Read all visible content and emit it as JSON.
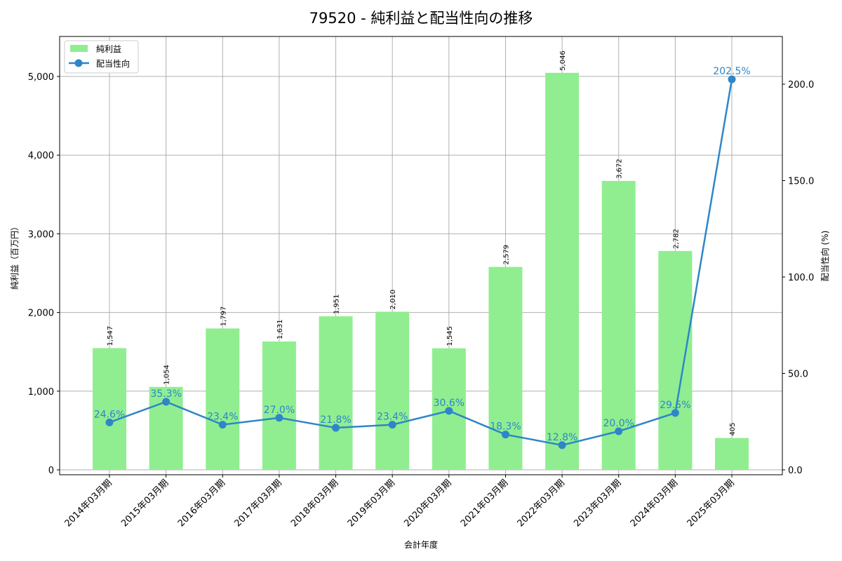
{
  "chart_data": {
    "type": "bar+line",
    "title": "79520 - 純利益と配当性向の推移",
    "xlabel": "会計年度",
    "ylabel_left": "純利益（百万円）",
    "ylabel_right": "配当性向 (%)",
    "categories": [
      "2014年03月期",
      "2015年03月期",
      "2016年03月期",
      "2017年03月期",
      "2018年03月期",
      "2019年03月期",
      "2020年03月期",
      "2021年03月期",
      "2022年03月期",
      "2023年03月期",
      "2024年03月期",
      "2025年03月期"
    ],
    "series": [
      {
        "name": "純利益",
        "type": "bar",
        "axis": "left",
        "color": "#90ee90",
        "values": [
          1547,
          1054,
          1797,
          1631,
          1951,
          2010,
          1545,
          2579,
          5046,
          3672,
          2782,
          405
        ],
        "labels": [
          "1,547",
          "1,054",
          "1,797",
          "1,631",
          "1,951",
          "2,010",
          "1,545",
          "2,579",
          "5,046",
          "3,672",
          "2,782",
          "405"
        ]
      },
      {
        "name": "配当性向",
        "type": "line",
        "axis": "right",
        "color": "#2e86c9",
        "values": [
          24.6,
          35.3,
          23.4,
          27.0,
          21.8,
          23.4,
          30.6,
          18.3,
          12.8,
          20.0,
          29.5,
          202.5
        ],
        "labels": [
          "24.6%",
          "35.3%",
          "23.4%",
          "27.0%",
          "21.8%",
          "23.4%",
          "30.6%",
          "18.3%",
          "12.8%",
          "20.0%",
          "29.5%",
          "202.5%"
        ]
      }
    ],
    "ylim_left": [
      -60,
      5500
    ],
    "yticks_left": [
      0,
      1000,
      2000,
      3000,
      4000,
      5000
    ],
    "yticklabels_left": [
      "0",
      "1,000",
      "2,000",
      "3,000",
      "4,000",
      "5,000"
    ],
    "ylim_right": [
      -2.5,
      225
    ],
    "yticks_right": [
      0,
      50,
      100,
      150,
      200
    ],
    "yticklabels_right": [
      "0.0",
      "50.0",
      "100.0",
      "150.0",
      "200.0"
    ],
    "grid": true,
    "legend_position": "upper left"
  }
}
